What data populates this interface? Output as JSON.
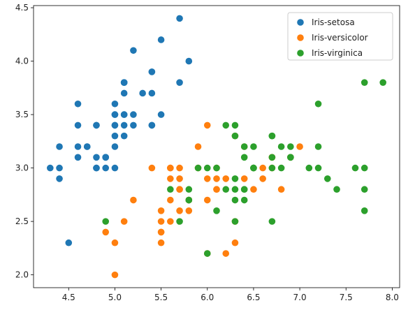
{
  "chart_data": {
    "type": "scatter",
    "title": "",
    "xlabel": "",
    "ylabel": "",
    "xlim": [
      4.12,
      8.08
    ],
    "ylim": [
      1.88,
      4.52
    ],
    "xticks": [
      "4.5",
      "5.0",
      "5.5",
      "6.0",
      "6.5",
      "7.0",
      "7.5",
      "8.0"
    ],
    "yticks": [
      "2.0",
      "2.5",
      "3.0",
      "3.5",
      "4.0",
      "4.5"
    ],
    "grid": false,
    "legend_position": "top-right",
    "series": [
      {
        "name": "Iris-setosa",
        "color": "#1f77b4",
        "points": [
          [
            5.1,
            3.5
          ],
          [
            4.9,
            3.0
          ],
          [
            4.7,
            3.2
          ],
          [
            4.6,
            3.1
          ],
          [
            5.0,
            3.6
          ],
          [
            5.4,
            3.9
          ],
          [
            4.6,
            3.4
          ],
          [
            5.0,
            3.4
          ],
          [
            4.4,
            2.9
          ],
          [
            4.9,
            3.1
          ],
          [
            5.4,
            3.7
          ],
          [
            4.8,
            3.4
          ],
          [
            4.8,
            3.0
          ],
          [
            4.3,
            3.0
          ],
          [
            5.8,
            4.0
          ],
          [
            5.7,
            4.4
          ],
          [
            5.4,
            3.9
          ],
          [
            5.1,
            3.5
          ],
          [
            5.7,
            3.8
          ],
          [
            5.1,
            3.8
          ],
          [
            5.4,
            3.4
          ],
          [
            5.1,
            3.7
          ],
          [
            4.6,
            3.6
          ],
          [
            5.1,
            3.3
          ],
          [
            4.8,
            3.4
          ],
          [
            5.0,
            3.0
          ],
          [
            5.0,
            3.4
          ],
          [
            5.2,
            3.5
          ],
          [
            5.2,
            3.4
          ],
          [
            4.7,
            3.2
          ],
          [
            4.8,
            3.1
          ],
          [
            5.4,
            3.4
          ],
          [
            5.2,
            4.1
          ],
          [
            5.5,
            4.2
          ],
          [
            4.9,
            3.1
          ],
          [
            5.0,
            3.2
          ],
          [
            5.5,
            3.5
          ],
          [
            4.9,
            3.1
          ],
          [
            4.4,
            3.0
          ],
          [
            5.1,
            3.4
          ],
          [
            5.0,
            3.5
          ],
          [
            4.5,
            2.3
          ],
          [
            4.4,
            3.2
          ],
          [
            5.0,
            3.5
          ],
          [
            5.1,
            3.8
          ],
          [
            4.8,
            3.0
          ],
          [
            5.1,
            3.8
          ],
          [
            4.6,
            3.2
          ],
          [
            5.3,
            3.7
          ],
          [
            5.0,
            3.3
          ]
        ]
      },
      {
        "name": "Iris-versicolor",
        "color": "#ff7f0e",
        "points": [
          [
            7.0,
            3.2
          ],
          [
            6.4,
            3.2
          ],
          [
            6.9,
            3.1
          ],
          [
            5.5,
            2.3
          ],
          [
            6.5,
            2.8
          ],
          [
            5.7,
            2.8
          ],
          [
            6.3,
            3.3
          ],
          [
            4.9,
            2.4
          ],
          [
            6.6,
            2.9
          ],
          [
            5.2,
            2.7
          ],
          [
            5.0,
            2.0
          ],
          [
            5.9,
            3.0
          ],
          [
            6.0,
            2.2
          ],
          [
            6.1,
            2.9
          ],
          [
            5.6,
            2.9
          ],
          [
            6.7,
            3.1
          ],
          [
            5.6,
            3.0
          ],
          [
            5.8,
            2.7
          ],
          [
            6.2,
            2.2
          ],
          [
            5.6,
            2.5
          ],
          [
            5.9,
            3.2
          ],
          [
            6.1,
            2.8
          ],
          [
            6.3,
            2.5
          ],
          [
            6.1,
            2.8
          ],
          [
            6.4,
            2.9
          ],
          [
            6.6,
            3.0
          ],
          [
            6.8,
            2.8
          ],
          [
            6.7,
            3.0
          ],
          [
            6.0,
            2.9
          ],
          [
            5.7,
            2.6
          ],
          [
            5.5,
            2.4
          ],
          [
            5.5,
            2.4
          ],
          [
            5.8,
            2.7
          ],
          [
            6.0,
            2.7
          ],
          [
            5.4,
            3.0
          ],
          [
            6.0,
            3.4
          ],
          [
            6.7,
            3.1
          ],
          [
            6.3,
            2.3
          ],
          [
            5.6,
            3.0
          ],
          [
            5.5,
            2.5
          ],
          [
            5.5,
            2.6
          ],
          [
            6.1,
            3.0
          ],
          [
            5.8,
            2.6
          ],
          [
            5.0,
            2.3
          ],
          [
            5.6,
            2.7
          ],
          [
            5.7,
            3.0
          ],
          [
            5.7,
            2.9
          ],
          [
            6.2,
            2.9
          ],
          [
            5.1,
            2.5
          ],
          [
            5.7,
            2.8
          ]
        ]
      },
      {
        "name": "Iris-virginica",
        "color": "#2ca02c",
        "points": [
          [
            6.3,
            3.3
          ],
          [
            5.8,
            2.7
          ],
          [
            7.1,
            3.0
          ],
          [
            6.3,
            2.9
          ],
          [
            6.5,
            3.0
          ],
          [
            7.6,
            3.0
          ],
          [
            4.9,
            2.5
          ],
          [
            7.3,
            2.9
          ],
          [
            6.7,
            2.5
          ],
          [
            7.2,
            3.6
          ],
          [
            6.5,
            3.2
          ],
          [
            6.4,
            2.7
          ],
          [
            6.8,
            3.0
          ],
          [
            5.7,
            2.5
          ],
          [
            5.8,
            2.8
          ],
          [
            6.4,
            3.2
          ],
          [
            6.5,
            3.0
          ],
          [
            7.7,
            3.8
          ],
          [
            7.7,
            2.6
          ],
          [
            6.0,
            2.2
          ],
          [
            6.9,
            3.2
          ],
          [
            5.6,
            2.8
          ],
          [
            7.7,
            2.8
          ],
          [
            6.3,
            2.7
          ],
          [
            6.7,
            3.3
          ],
          [
            7.2,
            3.2
          ],
          [
            6.2,
            2.8
          ],
          [
            6.1,
            3.0
          ],
          [
            6.4,
            2.8
          ],
          [
            7.2,
            3.0
          ],
          [
            7.4,
            2.8
          ],
          [
            7.9,
            3.8
          ],
          [
            6.4,
            2.8
          ],
          [
            6.3,
            2.8
          ],
          [
            6.1,
            2.6
          ],
          [
            7.7,
            3.0
          ],
          [
            6.3,
            3.4
          ],
          [
            6.4,
            3.1
          ],
          [
            6.0,
            3.0
          ],
          [
            6.9,
            3.1
          ],
          [
            6.7,
            3.1
          ],
          [
            6.9,
            3.1
          ],
          [
            5.8,
            2.7
          ],
          [
            6.8,
            3.2
          ],
          [
            6.7,
            3.3
          ],
          [
            6.7,
            3.0
          ],
          [
            6.3,
            2.5
          ],
          [
            6.5,
            3.0
          ],
          [
            6.2,
            3.4
          ],
          [
            5.9,
            3.0
          ]
        ]
      }
    ]
  }
}
